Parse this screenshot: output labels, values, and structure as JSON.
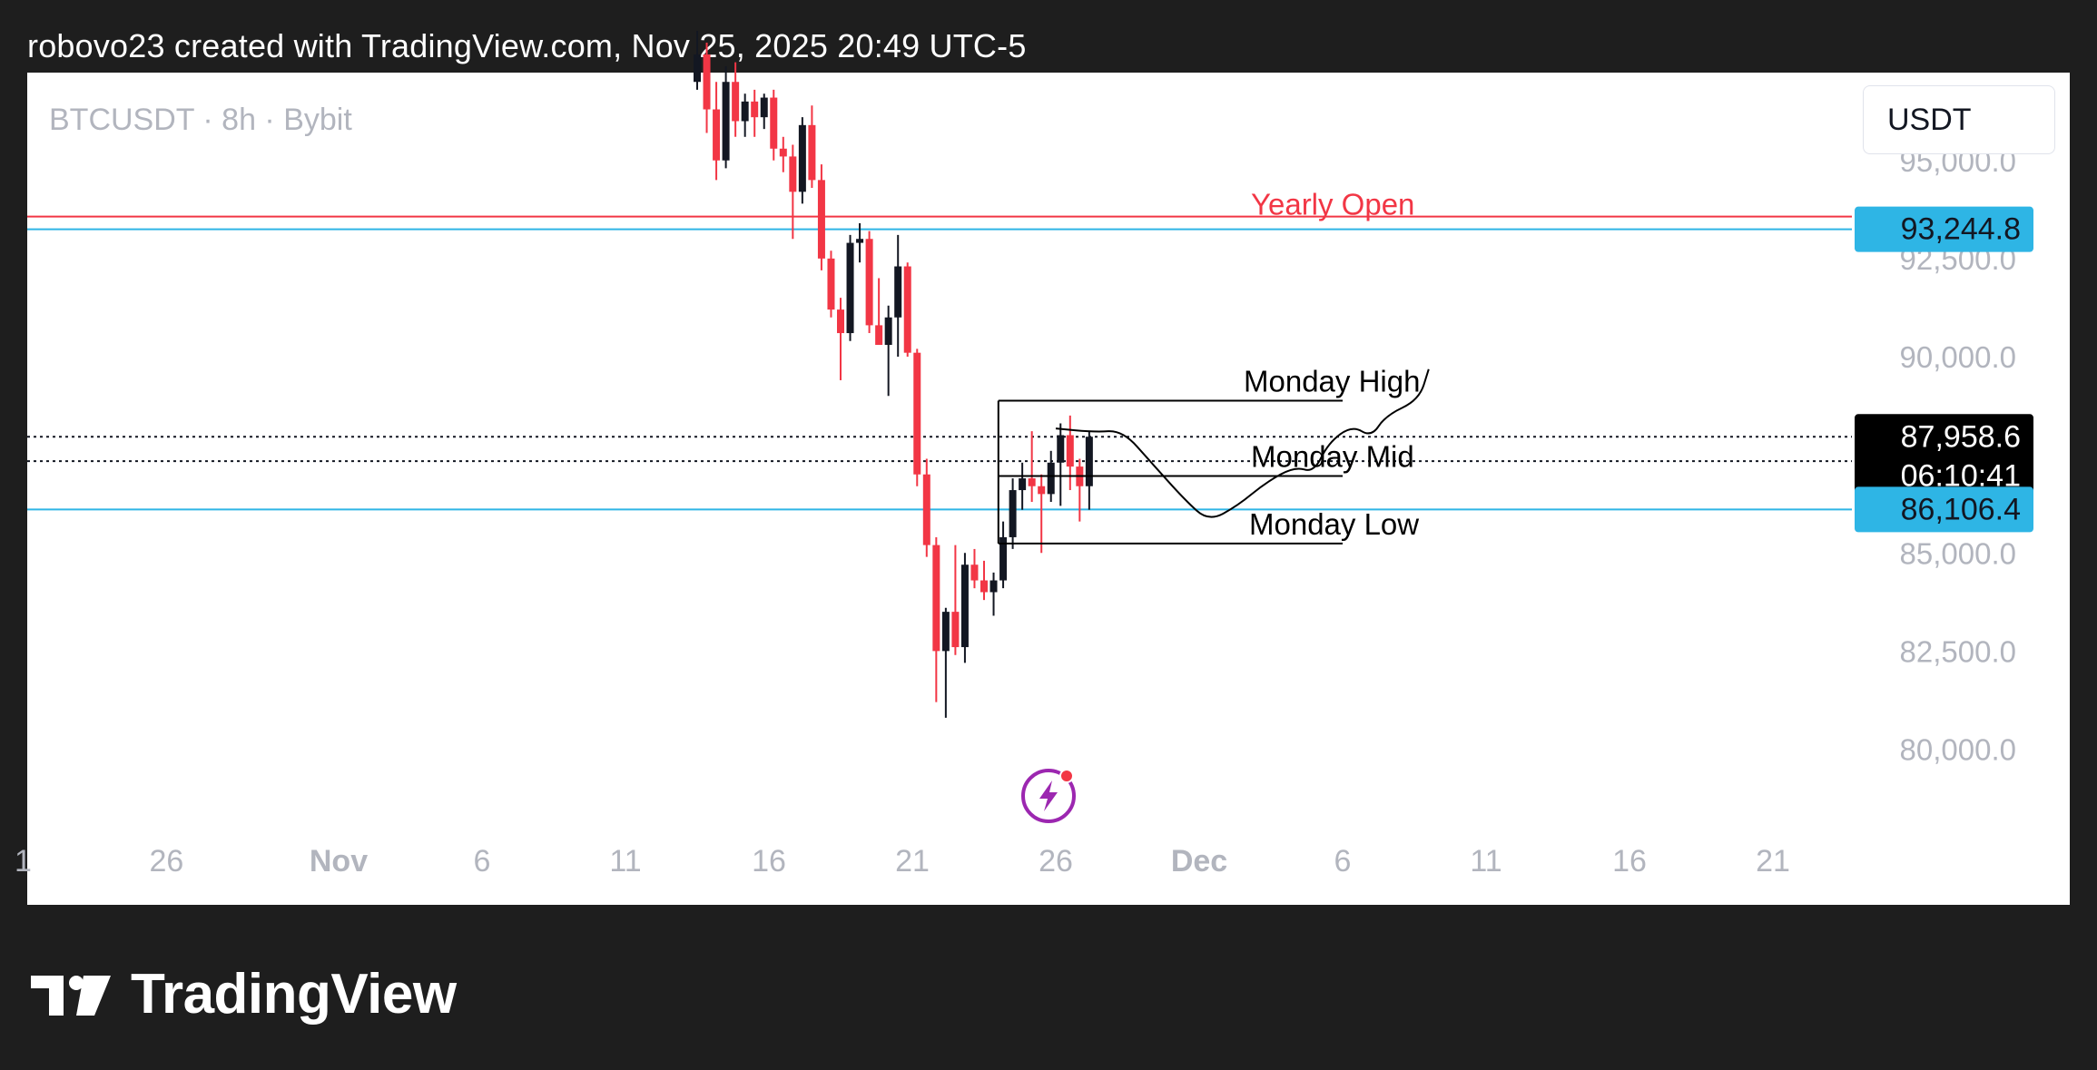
{
  "header": {
    "text": "robovo23 created with TradingView.com, Nov 25, 2025 20:49 UTC-5"
  },
  "symbol_label": "BTCUSDT · 8h · Bybit",
  "currency_button": "USDT",
  "brand": {
    "name": "TradingView",
    "logo_icon": "tradingview-logo-icon"
  },
  "colors": {
    "bull": "#131722",
    "bear": "#f23645",
    "yearly_open": "#f23645",
    "level_line": "#2eb5e5",
    "badge_blue": "#2eb5e5",
    "badge_dark": "#000000",
    "axis_text": "#b2b5be",
    "flash_icon": "#9c27b0"
  },
  "chart_data": {
    "type": "candlestick",
    "symbol": "BTCUSDT",
    "interval": "8h",
    "exchange": "Bybit",
    "x_ticks": [
      {
        "label": "1",
        "date": "2025-10-21",
        "bold": false
      },
      {
        "label": "26",
        "date": "2025-10-26",
        "bold": false
      },
      {
        "label": "Nov",
        "date": "2025-11-01",
        "bold": true
      },
      {
        "label": "6",
        "date": "2025-11-06",
        "bold": false
      },
      {
        "label": "11",
        "date": "2025-11-11",
        "bold": false
      },
      {
        "label": "16",
        "date": "2025-11-16",
        "bold": false
      },
      {
        "label": "21",
        "date": "2025-11-21",
        "bold": false
      },
      {
        "label": "26",
        "date": "2025-11-26",
        "bold": false
      },
      {
        "label": "Dec",
        "date": "2025-12-01",
        "bold": true
      },
      {
        "label": "6",
        "date": "2025-12-06",
        "bold": false
      },
      {
        "label": "11",
        "date": "2025-12-11",
        "bold": false
      },
      {
        "label": "16",
        "date": "2025-12-16",
        "bold": false
      },
      {
        "label": "21",
        "date": "2025-12-21",
        "bold": false
      }
    ],
    "y_ticks": [
      {
        "value": 95000,
        "label": "95,000.0"
      },
      {
        "value": 92500,
        "label": "92,500.0"
      },
      {
        "value": 90000,
        "label": "90,000.0"
      },
      {
        "value": 85000,
        "label": "85,000.0"
      },
      {
        "value": 82500,
        "label": "82,500.0"
      },
      {
        "value": 80000,
        "label": "80,000.0"
      }
    ],
    "candles": [
      [
        "2025-11-13 08:00",
        97000,
        98300,
        96800,
        97700
      ],
      [
        "2025-11-13 16:00",
        97700,
        98000,
        95700,
        96300
      ],
      [
        "2025-11-14 00:00",
        96300,
        97000,
        94500,
        95000
      ],
      [
        "2025-11-14 08:00",
        95000,
        97400,
        94800,
        97000
      ],
      [
        "2025-11-14 16:00",
        97000,
        97500,
        95600,
        96000
      ],
      [
        "2025-11-15 00:00",
        96000,
        96700,
        95600,
        96500
      ],
      [
        "2025-11-15 08:00",
        96500,
        96800,
        95600,
        96100
      ],
      [
        "2025-11-15 16:00",
        96100,
        96700,
        95800,
        96600
      ],
      [
        "2025-11-16 00:00",
        96600,
        96800,
        95000,
        95300
      ],
      [
        "2025-11-16 08:00",
        95300,
        95600,
        94700,
        95100
      ],
      [
        "2025-11-16 16:00",
        95100,
        95400,
        93000,
        94200
      ],
      [
        "2025-11-17 00:00",
        94200,
        96100,
        93900,
        95900
      ],
      [
        "2025-11-17 08:00",
        95900,
        96400,
        94300,
        94500
      ],
      [
        "2025-11-17 16:00",
        94500,
        94900,
        92200,
        92500
      ],
      [
        "2025-11-18 00:00",
        92500,
        92700,
        91000,
        91200
      ],
      [
        "2025-11-18 08:00",
        91200,
        91500,
        89400,
        90600
      ],
      [
        "2025-11-18 16:00",
        90600,
        93100,
        90400,
        92900
      ],
      [
        "2025-11-19 00:00",
        92900,
        93400,
        92400,
        93000
      ],
      [
        "2025-11-19 08:00",
        93000,
        93200,
        90600,
        90800
      ],
      [
        "2025-11-19 16:00",
        90800,
        92000,
        90300,
        90300
      ],
      [
        "2025-11-20 00:00",
        90300,
        91300,
        89000,
        91000
      ],
      [
        "2025-11-20 08:00",
        91000,
        93100,
        90000,
        92300
      ],
      [
        "2025-11-20 16:00",
        92300,
        92400,
        90000,
        90100
      ],
      [
        "2025-11-21 00:00",
        90100,
        90200,
        86700,
        87000
      ],
      [
        "2025-11-21 08:00",
        87000,
        87400,
        84900,
        85200
      ],
      [
        "2025-11-21 16:00",
        85200,
        85400,
        81200,
        82500
      ],
      [
        "2025-11-22 00:00",
        82500,
        83600,
        80800,
        83500
      ],
      [
        "2025-11-22 08:00",
        83500,
        85200,
        82400,
        82600
      ],
      [
        "2025-11-22 16:00",
        82600,
        85000,
        82200,
        84700
      ],
      [
        "2025-11-23 00:00",
        84700,
        85100,
        84100,
        84300
      ],
      [
        "2025-11-23 08:00",
        84300,
        84800,
        83800,
        84000
      ],
      [
        "2025-11-23 16:00",
        84000,
        84500,
        83400,
        84300
      ],
      [
        "2025-11-24 00:00",
        84300,
        85800,
        84100,
        85400
      ],
      [
        "2025-11-24 08:00",
        85400,
        86900,
        85100,
        86600
      ],
      [
        "2025-11-24 16:00",
        86600,
        87300,
        86100,
        86900
      ],
      [
        "2025-11-25 00:00",
        86900,
        88100,
        86300,
        86700
      ],
      [
        "2025-11-25 08:00",
        86700,
        87000,
        85000,
        86500
      ],
      [
        "2025-11-25 16:00",
        86500,
        87600,
        86300,
        87300
      ],
      [
        "2025-11-26 00:00",
        87300,
        88300,
        86200,
        88000
      ],
      [
        "2025-11-26 08:00",
        88000,
        88500,
        86600,
        87200
      ],
      [
        "2025-11-26 16:00",
        87200,
        87400,
        85800,
        86700
      ],
      [
        "2025-11-27 00:00",
        86700,
        88100,
        86100,
        87960
      ]
    ],
    "horizontal_lines": [
      {
        "name": "Yearly Open",
        "price": 93570,
        "style": "solid",
        "color": "#f23645",
        "label": "Yearly Open"
      },
      {
        "price": 93244.8,
        "style": "solid",
        "color": "#2eb5e5"
      },
      {
        "price": 86106.4,
        "style": "solid",
        "color": "#2eb5e5"
      },
      {
        "price": 87958.6,
        "style": "dotted",
        "color": "#131722"
      },
      {
        "price": 87337,
        "style": "dotted",
        "color": "#131722"
      }
    ],
    "monday_range": {
      "start": "2025-11-24 00:00",
      "end": "2025-12-06 00:00",
      "high": 88880,
      "mid": 86960,
      "low": 85240,
      "labels": {
        "high": "Monday High",
        "mid": "Monday Mid",
        "low": "Monday Low"
      }
    },
    "projection_path": [
      [
        "2025-11-26 00:00",
        88170
      ],
      [
        "2025-11-27 08:00",
        88080
      ],
      [
        "2025-11-28 08:00",
        88120
      ],
      [
        "2025-11-29 08:00",
        87300
      ],
      [
        "2025-11-30 12:00",
        86350
      ],
      [
        "2025-12-01 08:00",
        85800
      ],
      [
        "2025-12-02 08:00",
        86200
      ],
      [
        "2025-12-03 08:00",
        86800
      ],
      [
        "2025-12-04 08:00",
        87200
      ],
      [
        "2025-12-05 00:00",
        87050
      ],
      [
        "2025-12-05 12:00",
        87800
      ],
      [
        "2025-12-06 08:00",
        88250
      ],
      [
        "2025-12-07 00:00",
        87950
      ],
      [
        "2025-12-07 12:00",
        88500
      ],
      [
        "2025-12-08 16:00",
        88900
      ],
      [
        "2025-12-09 00:00",
        89680
      ]
    ],
    "price_badges": [
      {
        "price": 93244.8,
        "text": "93,244.8",
        "style": "blue"
      },
      {
        "price": 87958.6,
        "text": "87,958.6",
        "subtext": "06:10:41",
        "style": "dark"
      },
      {
        "price": 86106.4,
        "text": "86,106.4",
        "style": "blue"
      }
    ],
    "flash_icon": "flash-lightning-icon"
  }
}
